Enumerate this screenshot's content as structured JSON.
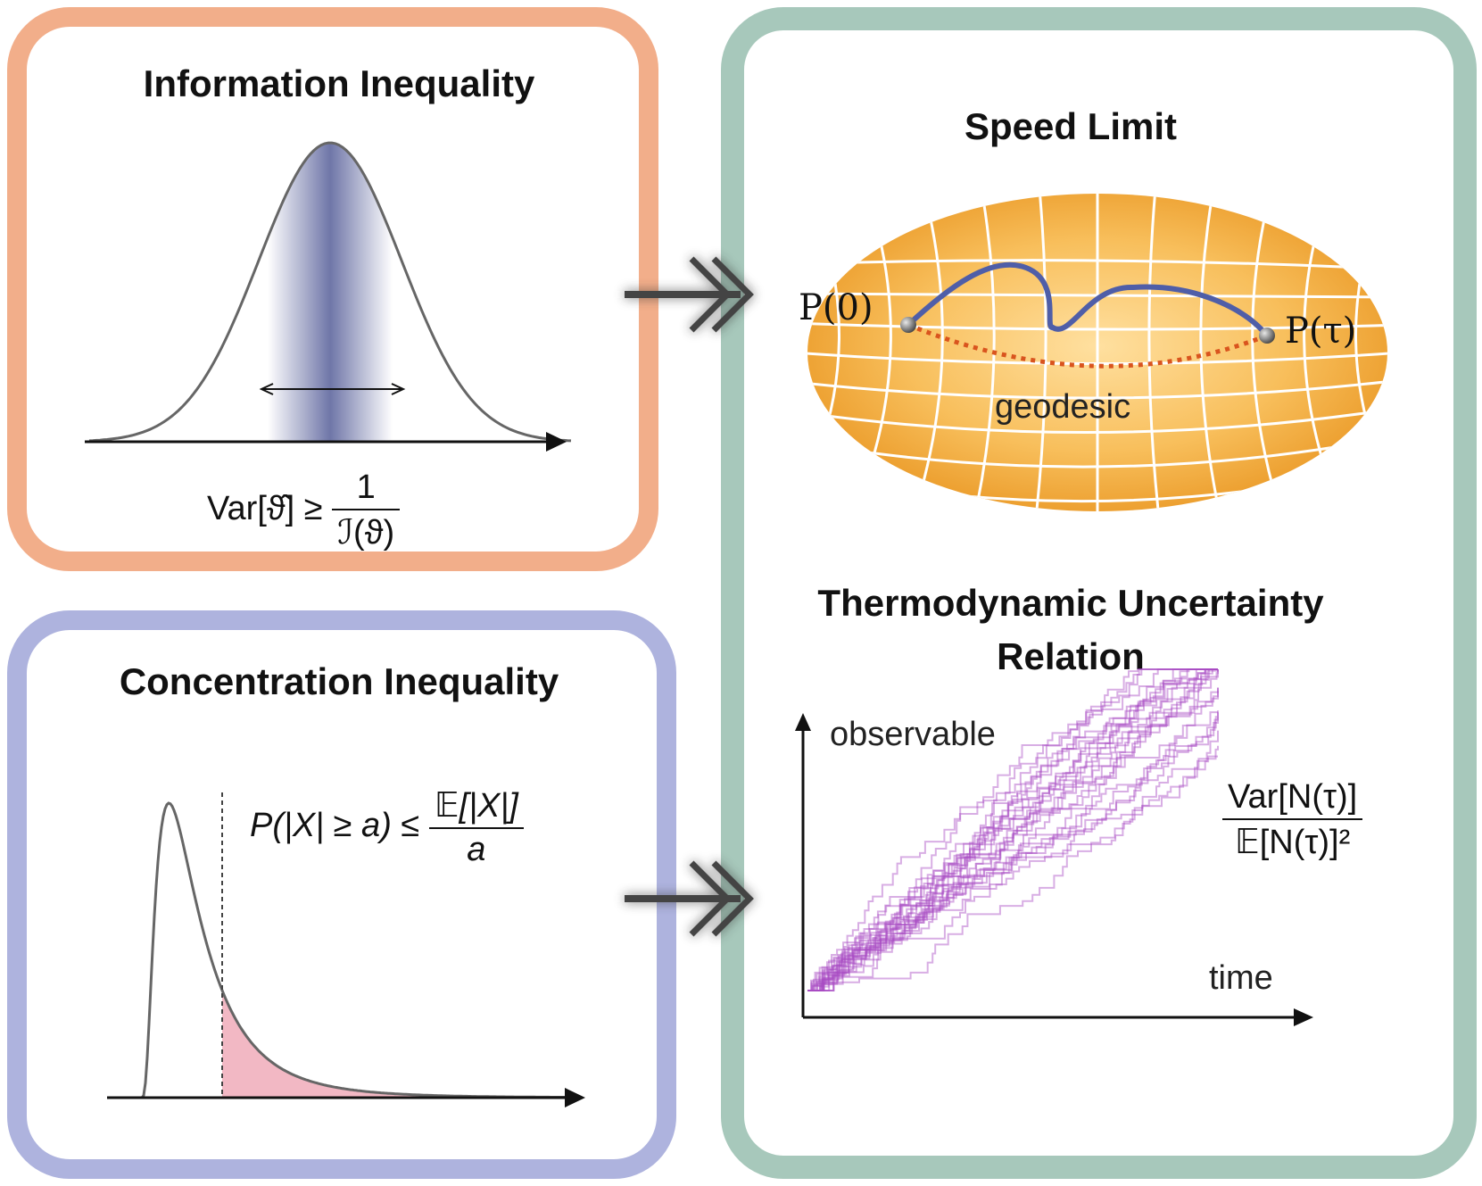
{
  "panels": {
    "info": {
      "title": "Information Inequality",
      "formula_lhs": "Var[ϑ̂] ≥",
      "formula_num": "1",
      "formula_den": "ℐ(ϑ)"
    },
    "concentration": {
      "title": "Concentration Inequality",
      "formula_lhs": "P(|X| ≥ a) ≤",
      "formula_num": "𝔼[|X|]",
      "formula_den": "a"
    },
    "speed_limit": {
      "title": "Speed Limit",
      "start_label": "P(0)",
      "end_label": "P(τ)",
      "geodesic_label": "geodesic"
    },
    "tur": {
      "title_line1": "Thermodynamic Uncertainty",
      "title_line2": "Relation",
      "y_label": "observable",
      "x_label": "time",
      "ratio_num": "Var[N(τ)]",
      "ratio_den": "𝔼[N(τ)]²"
    }
  },
  "colors": {
    "info_border": "#F2AE8A",
    "conc_border": "#AEB3DE",
    "right_border": "#A7C8BB",
    "gauss_band": "#6F76A8",
    "tail_fill": "#F2B8C4",
    "manifold": "#F5B24A",
    "path": "#4F5EA8",
    "geodesic": "#D9541E",
    "trajectories": "#A84BC4"
  }
}
